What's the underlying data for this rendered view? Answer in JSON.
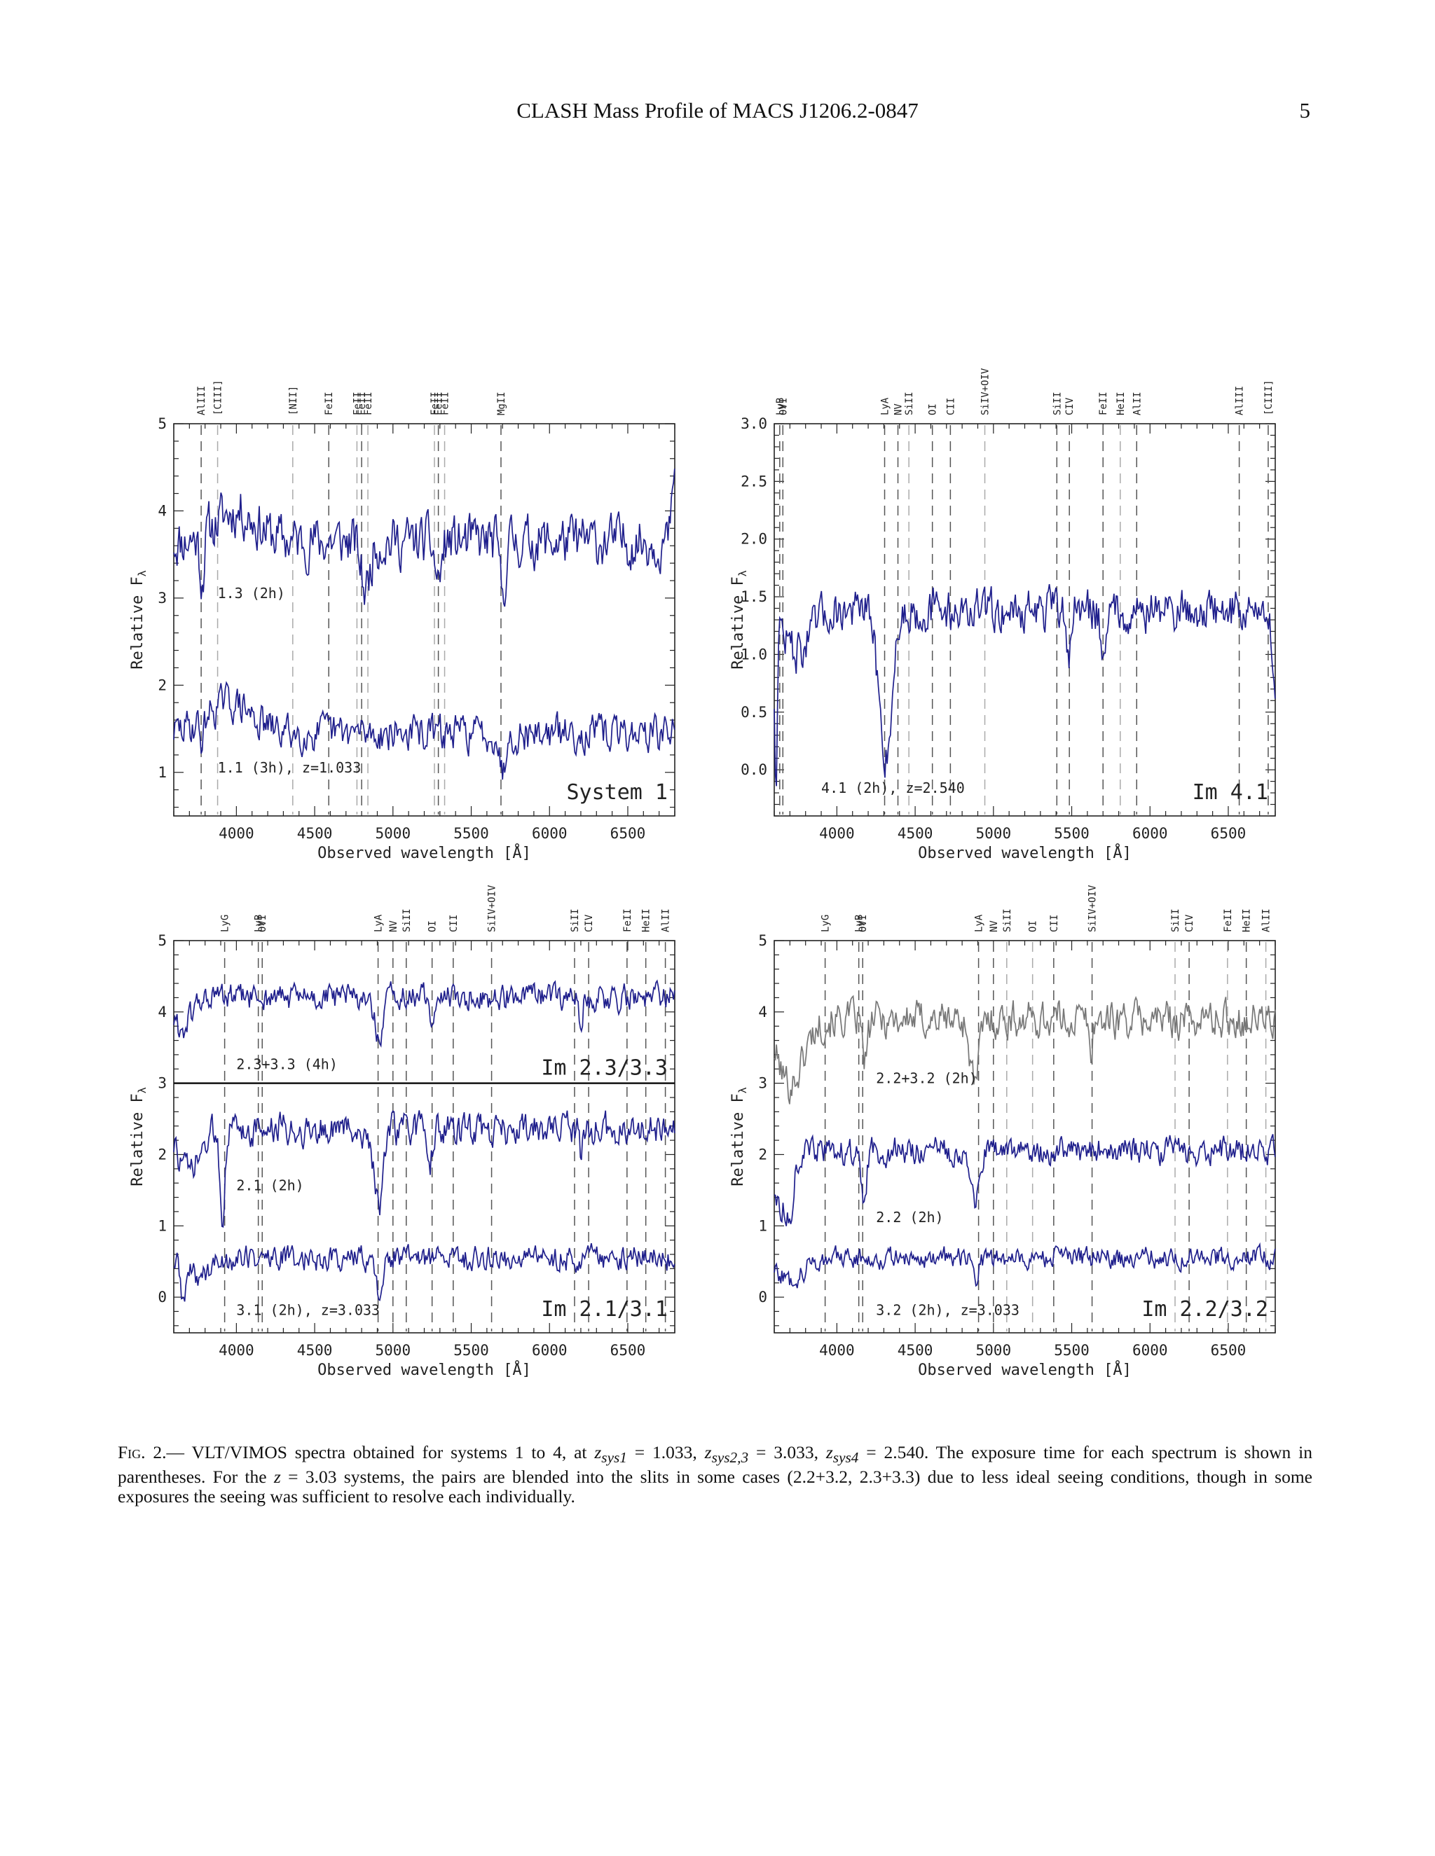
{
  "header": {
    "running_title": "CLASH Mass Profile of MACS J1206.2-0847",
    "page_number": "5"
  },
  "colors": {
    "spectrum": "#1f1f8c",
    "spectrum_gray": "#777777",
    "line_dark": "#555555",
    "line_light": "#aaaaaa"
  },
  "chart_data": [
    {
      "id": "system1",
      "type": "line",
      "xlabel": "Observed wavelength [Å]",
      "ylabel": "Relative F",
      "ylabel_sub": "λ",
      "xlim": [
        3600,
        6800
      ],
      "ylim": [
        0.5,
        5.0
      ],
      "xticks": [
        4000,
        4500,
        5000,
        5500,
        6000,
        6500
      ],
      "yticks": [
        1,
        2,
        3,
        4,
        5
      ],
      "panel_label": "System 1",
      "divider": null,
      "series": [
        {
          "label": "1.3 (2h)",
          "color": "spectrum",
          "base": 3.65,
          "noise": 0.28,
          "seed": 11,
          "label_x": 3880,
          "label_y": 3.0,
          "absorptions": [
            [
              4825,
              0.55,
              40
            ],
            [
              5290,
              0.45,
              30
            ],
            [
              5700,
              0.6,
              25
            ],
            [
              3780,
              0.5,
              20
            ]
          ],
          "bumps": [
            [
              4000,
              0.35,
              180
            ]
          ],
          "edge_end": 4.5
        },
        {
          "label": "1.1 (3h), z=1.033",
          "color": "spectrum",
          "base": 1.45,
          "noise": 0.2,
          "seed": 29,
          "label_x": 3880,
          "label_y": 1.0,
          "absorptions": [
            [
              5700,
              0.45,
              25
            ],
            [
              3780,
              0.25,
              20
            ]
          ],
          "bumps": [
            [
              3950,
              0.35,
              200
            ]
          ],
          "edge_end": null
        }
      ],
      "lines": [
        {
          "label": "AlIII",
          "x": 3775,
          "style": "dark"
        },
        {
          "label": "[CIII]",
          "x": 3880,
          "style": "light"
        },
        {
          "label": "[NII]",
          "x": 4360,
          "style": "light"
        },
        {
          "label": "FeII",
          "x": 4590,
          "style": "dark"
        },
        {
          "label": "FeII",
          "x": 4770,
          "style": "light"
        },
        {
          "label": "FeII",
          "x": 4800,
          "style": "dark"
        },
        {
          "label": "FeII",
          "x": 4840,
          "style": "light"
        },
        {
          "label": "FeII",
          "x": 5265,
          "style": "light"
        },
        {
          "label": "FeII",
          "x": 5290,
          "style": "dark"
        },
        {
          "label": "FeII",
          "x": 5330,
          "style": "light"
        },
        {
          "label": "MgII",
          "x": 5690,
          "style": "dark"
        }
      ]
    },
    {
      "id": "image41",
      "type": "line",
      "xlabel": "Observed wavelength [Å]",
      "ylabel": "Relative F",
      "ylabel_sub": "λ",
      "xlim": [
        3600,
        6800
      ],
      "ylim": [
        -0.4,
        3.0
      ],
      "xticks": [
        4000,
        4500,
        5000,
        5500,
        6000,
        6500
      ],
      "yticks": [
        0.0,
        0.5,
        1.0,
        1.5,
        2.0,
        2.5,
        3.0
      ],
      "ytick_labels": [
        "0.0",
        "0.5",
        "1.0",
        "1.5",
        "2.0",
        "2.5",
        "3.0"
      ],
      "panel_label": "Im 4.1",
      "divider": null,
      "series": [
        {
          "label": "4.1 (2h), z=2.540",
          "color": "spectrum",
          "base": 1.38,
          "noise": 0.18,
          "seed": 47,
          "label_x": 3900,
          "label_y": -0.2,
          "absorptions": [
            [
              4310,
              1.25,
              60
            ],
            [
              3610,
              1.4,
              12
            ],
            [
              5480,
              0.35,
              20
            ],
            [
              5700,
              0.45,
              18
            ]
          ],
          "bumps": [
            [
              3750,
              -0.35,
              120
            ]
          ],
          "edge_end": 0.6
        }
      ],
      "lines": [
        {
          "label": "LyB",
          "x": 3635,
          "style": "dark"
        },
        {
          "label": "OVI",
          "x": 3655,
          "style": "dark"
        },
        {
          "label": "LyA",
          "x": 4305,
          "style": "dark"
        },
        {
          "label": "NV",
          "x": 4390,
          "style": "dark"
        },
        {
          "label": "SiII",
          "x": 4460,
          "style": "light"
        },
        {
          "label": "OI",
          "x": 4610,
          "style": "dark"
        },
        {
          "label": "CII",
          "x": 4725,
          "style": "dark"
        },
        {
          "label": "SiIV+OIV",
          "x": 4945,
          "style": "light"
        },
        {
          "label": "SiII",
          "x": 5405,
          "style": "dark"
        },
        {
          "label": "CIV",
          "x": 5485,
          "style": "dark"
        },
        {
          "label": "FeII",
          "x": 5700,
          "style": "dark"
        },
        {
          "label": "HeII",
          "x": 5810,
          "style": "light"
        },
        {
          "label": "AlII",
          "x": 5915,
          "style": "dark"
        },
        {
          "label": "AlIII",
          "x": 6570,
          "style": "dark"
        },
        {
          "label": "[CIII]",
          "x": 6755,
          "style": "dark"
        }
      ]
    },
    {
      "id": "image21_31",
      "type": "line",
      "xlabel": "Observed wavelength [Å]",
      "ylabel": "Relative F",
      "ylabel_sub": "λ",
      "xlim": [
        3600,
        6800
      ],
      "ylim": [
        -0.5,
        5.0
      ],
      "xticks": [
        4000,
        4500,
        5000,
        5500,
        6000,
        6500
      ],
      "yticks": [
        0,
        1,
        2,
        3,
        4,
        5
      ],
      "panel_label": "Im 2.1/3.1",
      "panel_label_top": "Im 2.3/3.3",
      "divider": 3.0,
      "series": [
        {
          "label": "2.3+3.3 (4h)",
          "color": "spectrum",
          "base": 4.2,
          "noise": 0.18,
          "seed": 61,
          "label_x": 4000,
          "label_y": 3.2,
          "absorptions": [
            [
              4910,
              0.65,
              35
            ],
            [
              5240,
              0.35,
              20
            ],
            [
              6200,
              0.3,
              15
            ]
          ],
          "bumps": [
            [
              3650,
              -0.45,
              80
            ]
          ],
          "edge_end": null
        },
        {
          "label": "2.1 (2h)",
          "color": "spectrum",
          "base": 2.35,
          "noise": 0.22,
          "seed": 73,
          "label_x": 4000,
          "label_y": 1.5,
          "absorptions": [
            [
              4910,
              1.0,
              45
            ],
            [
              3910,
              1.2,
              20
            ],
            [
              5240,
              0.4,
              20
            ],
            [
              6200,
              0.3,
              15
            ]
          ],
          "bumps": [
            [
              3700,
              -0.6,
              100
            ]
          ],
          "edge_end": null
        },
        {
          "label": "3.1 (2h), z=3.033",
          "color": "spectrum",
          "base": 0.55,
          "noise": 0.17,
          "seed": 89,
          "label_x": 4000,
          "label_y": -0.25,
          "absorptions": [
            [
              4910,
              0.45,
              35
            ],
            [
              3660,
              0.5,
              20
            ]
          ],
          "bumps": [
            [
              3750,
              -0.25,
              120
            ]
          ],
          "edge_end": null
        }
      ],
      "lines": [
        {
          "label": "LyG",
          "x": 3925,
          "style": "dark"
        },
        {
          "label": "LyB",
          "x": 4140,
          "style": "dark"
        },
        {
          "label": "OVI",
          "x": 4165,
          "style": "dark"
        },
        {
          "label": "LyA",
          "x": 4905,
          "style": "dark"
        },
        {
          "label": "NV",
          "x": 5000,
          "style": "dark"
        },
        {
          "label": "SiII",
          "x": 5085,
          "style": "dark"
        },
        {
          "label": "OI",
          "x": 5250,
          "style": "dark"
        },
        {
          "label": "CII",
          "x": 5385,
          "style": "dark"
        },
        {
          "label": "SiIV+OIV",
          "x": 5630,
          "style": "dark"
        },
        {
          "label": "SiII",
          "x": 6160,
          "style": "dark"
        },
        {
          "label": "CIV",
          "x": 6250,
          "style": "dark"
        },
        {
          "label": "FeII",
          "x": 6495,
          "style": "dark"
        },
        {
          "label": "HeII",
          "x": 6615,
          "style": "dark"
        },
        {
          "label": "AlII",
          "x": 6740,
          "style": "dark"
        }
      ]
    },
    {
      "id": "image22_32",
      "type": "line",
      "xlabel": "Observed wavelength [Å]",
      "ylabel": "Relative F",
      "ylabel_sub": "λ",
      "xlim": [
        3600,
        6800
      ],
      "ylim": [
        -0.5,
        5.0
      ],
      "xticks": [
        4000,
        4500,
        5000,
        5500,
        6000,
        6500
      ],
      "yticks": [
        0,
        1,
        2,
        3,
        4,
        5
      ],
      "panel_label": "Im 2.2/3.2",
      "divider": null,
      "series": [
        {
          "label": "2.2+3.2 (2h)",
          "color": "spectrum_gray",
          "base": 3.9,
          "noise": 0.25,
          "seed": 101,
          "label_x": 4250,
          "label_y": 3.0,
          "absorptions": [
            [
              4880,
              0.9,
              40
            ],
            [
              4180,
              0.6,
              25
            ],
            [
              5620,
              0.5,
              15
            ]
          ],
          "bumps": [
            [
              3700,
              -0.9,
              120
            ]
          ],
          "edge_end": null
        },
        {
          "label": "2.2 (2h)",
          "color": "spectrum",
          "base": 2.05,
          "noise": 0.18,
          "seed": 113,
          "label_x": 4250,
          "label_y": 1.05,
          "absorptions": [
            [
              4880,
              0.75,
              40
            ],
            [
              4170,
              0.8,
              25
            ],
            [
              3700,
              0.5,
              20
            ]
          ],
          "bumps": [
            [
              3650,
              -0.8,
              80
            ]
          ],
          "edge_end": null
        },
        {
          "label": "3.2 (2h), z=3.033",
          "color": "spectrum",
          "base": 0.55,
          "noise": 0.14,
          "seed": 127,
          "label_x": 4250,
          "label_y": -0.25,
          "absorptions": [
            [
              4880,
              0.3,
              30
            ]
          ],
          "bumps": [
            [
              3700,
              -0.3,
              120
            ]
          ],
          "edge_end": null
        }
      ],
      "lines": [
        {
          "label": "LyG",
          "x": 3925,
          "style": "dark"
        },
        {
          "label": "LyB",
          "x": 4140,
          "style": "dark"
        },
        {
          "label": "OVI",
          "x": 4165,
          "style": "dark"
        },
        {
          "label": "LyA",
          "x": 4905,
          "style": "dark"
        },
        {
          "label": "NV",
          "x": 5000,
          "style": "dark"
        },
        {
          "label": "SiII",
          "x": 5085,
          "style": "light"
        },
        {
          "label": "OI",
          "x": 5250,
          "style": "light"
        },
        {
          "label": "CII",
          "x": 5385,
          "style": "dark"
        },
        {
          "label": "SiIV+OIV",
          "x": 5630,
          "style": "dark"
        },
        {
          "label": "SiII",
          "x": 6160,
          "style": "light"
        },
        {
          "label": "CIV",
          "x": 6250,
          "style": "dark"
        },
        {
          "label": "FeII",
          "x": 6495,
          "style": "light"
        },
        {
          "label": "HeII",
          "x": 6615,
          "style": "dark"
        },
        {
          "label": "AlII",
          "x": 6740,
          "style": "light"
        }
      ]
    }
  ],
  "caption": {
    "fig_label": "Fig. 2.",
    "text_1": "— VLT/VIMOS spectra obtained for systems 1 to 4, at ",
    "z1_name": "z",
    "z1_sub": "sys1",
    "z1_val": " = 1.033, ",
    "z2_name": "z",
    "z2_sub": "sys2,3",
    "z2_val": " = 3.033, ",
    "z3_name": "z",
    "z3_sub": "sys4",
    "z3_val": " = 2.540. The exposure time for each spectrum is shown in parentheses. For the ",
    "z4_name": "z",
    "text_2": " = 3.03 systems, the pairs are blended into the slits in some cases (2.2+3.2, 2.3+3.3) due to less ideal seeing conditions, though in some exposures the seeing was sufficient to resolve each individually."
  }
}
